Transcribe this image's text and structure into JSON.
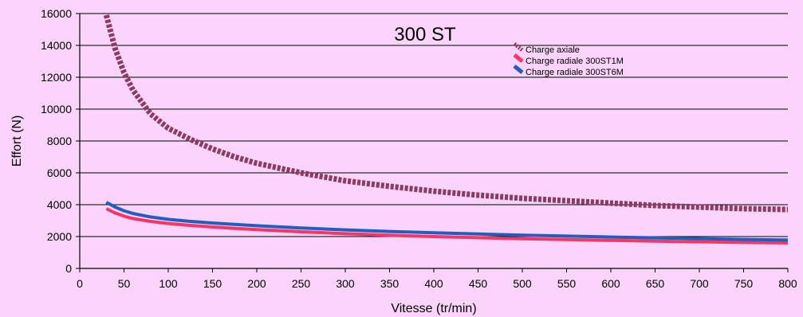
{
  "chart_data": {
    "type": "line",
    "title": "300 ST",
    "xlabel": "Vitesse (tr/min)",
    "ylabel": "Effort (N)",
    "xlim": [
      0,
      800
    ],
    "ylim": [
      0,
      16000
    ],
    "x_ticks": [
      0,
      50,
      100,
      150,
      200,
      250,
      300,
      350,
      400,
      450,
      500,
      550,
      600,
      650,
      700,
      750,
      800
    ],
    "y_ticks": [
      0,
      2000,
      4000,
      6000,
      8000,
      10000,
      12000,
      14000,
      16000
    ],
    "y_grid": true,
    "x_grid": false,
    "legend_position": "top-right",
    "series": [
      {
        "name": "Charge axiale",
        "color": "#8b3a62",
        "style": "dashed",
        "x": [
          30,
          40,
          50,
          60,
          80,
          100,
          125,
          150,
          175,
          200,
          250,
          300,
          350,
          400,
          450,
          500,
          550,
          600,
          650,
          700,
          750,
          800
        ],
        "y": [
          15900,
          13800,
          12300,
          11200,
          9700,
          8800,
          8100,
          7500,
          7000,
          6600,
          6000,
          5500,
          5150,
          4850,
          4600,
          4400,
          4250,
          4100,
          3950,
          3850,
          3750,
          3700
        ]
      },
      {
        "name": "Charge radiale 300ST1M",
        "color": "#ff3366",
        "style": "solid",
        "x": [
          30,
          40,
          50,
          60,
          80,
          100,
          125,
          150,
          175,
          200,
          250,
          300,
          350,
          400,
          450,
          500,
          550,
          600,
          650,
          700,
          750,
          800
        ],
        "y": [
          3750,
          3480,
          3280,
          3130,
          2950,
          2820,
          2700,
          2600,
          2510,
          2440,
          2300,
          2180,
          2080,
          2000,
          1930,
          1860,
          1810,
          1760,
          1710,
          1670,
          1630,
          1600
        ]
      },
      {
        "name": "Charge radiale 300ST6M",
        "color": "#1f5fbf",
        "style": "solid",
        "x": [
          30,
          40,
          50,
          60,
          80,
          100,
          125,
          150,
          175,
          200,
          250,
          300,
          350,
          400,
          450,
          500,
          550,
          600,
          650,
          700,
          750,
          800
        ],
        "y": [
          4150,
          3850,
          3620,
          3450,
          3230,
          3080,
          2950,
          2850,
          2760,
          2680,
          2540,
          2420,
          2320,
          2240,
          2160,
          2090,
          2030,
          1970,
          1920,
          1870,
          1820,
          1780
        ]
      }
    ]
  }
}
